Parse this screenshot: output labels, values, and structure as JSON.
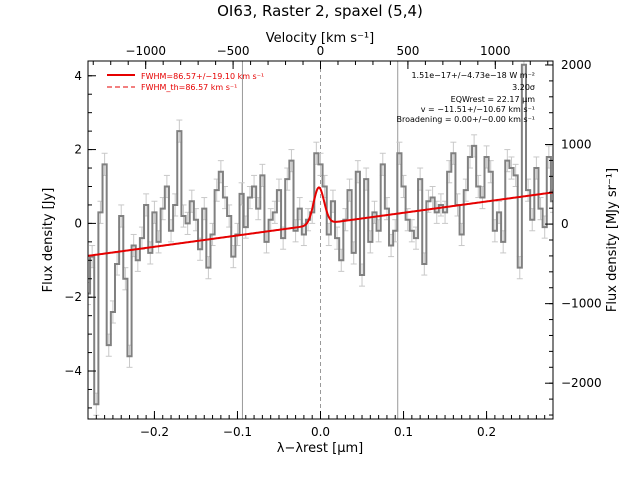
{
  "chart_data": {
    "type": "line",
    "title": "OI63, Raster 2, spaxel (5,4)",
    "xlabel": "λ−λrest [μm]",
    "ylabel": "Flux density [Jy]",
    "top_axis_label": "Velocity [km s⁻¹]",
    "right_axis_label": "Flux density [MJy sr⁻¹]",
    "xlim": [
      -0.28,
      0.28
    ],
    "ylim": [
      -5.3,
      4.4
    ],
    "top_xlim": [
      -1330,
      1330
    ],
    "right_ylim": [
      -2450,
      2050
    ],
    "x_ticks": [
      -0.2,
      -0.1,
      0.0,
      0.1,
      0.2
    ],
    "x_tick_labels": [
      "−0.2",
      "−0.1",
      "0.0",
      "0.1",
      "0.2"
    ],
    "y_ticks": [
      -4,
      -2,
      0,
      2,
      4
    ],
    "y_tick_labels": [
      "−4",
      "−2",
      "0",
      "2",
      "4"
    ],
    "top_ticks": [
      -1000,
      -500,
      0,
      500,
      1000
    ],
    "top_tick_labels": [
      "−1000",
      "−500",
      "0",
      "500",
      "1000"
    ],
    "right_ticks": [
      -2000,
      -1000,
      0,
      1000,
      2000
    ],
    "right_tick_labels": [
      "−2000",
      "−1000",
      "0",
      "1000",
      "2000"
    ],
    "vertical_lines": [
      -0.094,
      0.0,
      0.093
    ],
    "legend": [
      {
        "label": "FWHM=86.57+/−19.10 km s⁻¹",
        "style": "solid",
        "color": "#e60000"
      },
      {
        "label": "FWHM_th=86.57 km s⁻¹",
        "style": "dashed",
        "color": "#e60000"
      }
    ],
    "annotations": [
      "1.51e−17+/−4.73e−18 W m⁻²",
      "3.20σ",
      "EQWrest = 22.17 μm",
      "v = −11.51+/−10.67 km s⁻¹",
      "Broadening = 0.00+/−0.00 km s⁻¹"
    ],
    "series": [
      {
        "name": "",
        "color": "#808080",
        "step": true,
        "x": [
          -0.28,
          -0.275,
          -0.27,
          -0.265,
          -0.26,
          -0.255,
          -0.25,
          -0.245,
          -0.24,
          -0.235,
          -0.23,
          -0.225,
          -0.22,
          -0.215,
          -0.21,
          -0.205,
          -0.2,
          -0.195,
          -0.19,
          -0.185,
          -0.18,
          -0.175,
          -0.17,
          -0.165,
          -0.16,
          -0.155,
          -0.15,
          -0.145,
          -0.14,
          -0.135,
          -0.13,
          -0.125,
          -0.12,
          -0.115,
          -0.11,
          -0.105,
          -0.1,
          -0.095,
          -0.09,
          -0.085,
          -0.08,
          -0.075,
          -0.07,
          -0.065,
          -0.06,
          -0.055,
          -0.05,
          -0.045,
          -0.04,
          -0.035,
          -0.03,
          -0.025,
          -0.02,
          -0.015,
          -0.01,
          -0.005,
          0.0,
          0.005,
          0.01,
          0.015,
          0.02,
          0.025,
          0.03,
          0.035,
          0.04,
          0.045,
          0.05,
          0.055,
          0.06,
          0.065,
          0.07,
          0.075,
          0.08,
          0.085,
          0.09,
          0.095,
          0.1,
          0.105,
          0.11,
          0.115,
          0.12,
          0.125,
          0.13,
          0.135,
          0.14,
          0.145,
          0.15,
          0.155,
          0.16,
          0.165,
          0.17,
          0.175,
          0.18,
          0.185,
          0.19,
          0.195,
          0.2,
          0.205,
          0.21,
          0.215,
          0.22,
          0.225,
          0.23,
          0.235,
          0.24,
          0.245,
          0.25,
          0.255,
          0.26,
          0.265,
          0.27,
          0.275,
          0.28
        ],
        "y": [
          -1.9,
          -0.9,
          -4.9,
          0.3,
          1.6,
          -3.3,
          -2.4,
          -1.1,
          0.2,
          -1.5,
          -3.6,
          -0.6,
          -1.0,
          -0.4,
          0.5,
          -0.8,
          0.3,
          -0.5,
          0.4,
          1.0,
          -0.2,
          0.5,
          2.5,
          0.2,
          0.0,
          0.6,
          0.1,
          -0.7,
          0.4,
          -1.2,
          -0.3,
          0.9,
          1.4,
          0.7,
          0.2,
          -0.9,
          -0.3,
          0.8,
          -0.1,
          0.7,
          1.0,
          0.4,
          1.3,
          -0.5,
          0.1,
          0.3,
          0.9,
          -0.4,
          1.2,
          1.7,
          -0.2,
          0.4,
          -0.3,
          0.1,
          0.3,
          1.9,
          1.6,
          1.0,
          -0.3,
          0.6,
          -0.4,
          -1.0,
          0.1,
          0.9,
          -0.8,
          1.4,
          -1.4,
          1.2,
          -0.5,
          0.3,
          -0.2,
          1.6,
          0.4,
          -0.6,
          -0.2,
          1.9,
          1.0,
          0.1,
          -0.2,
          -0.4,
          1.2,
          -1.1,
          0.6,
          0.7,
          0.3,
          0.5,
          0.3,
          1.4,
          1.9,
          0.5,
          -0.3,
          0.9,
          1.8,
          2.1,
          1.0,
          0.7,
          1.8,
          1.4,
          -0.2,
          0.3,
          -0.5,
          1.7,
          1.5,
          1.3,
          -1.2,
          4.3,
          0.9,
          0.1,
          1.5,
          0.4,
          -0.1,
          1.8,
          0.6
        ]
      },
      {
        "name": "",
        "color": "#e60000",
        "type": "fit",
        "slope": 3.07,
        "intercept": -0.02,
        "gauss_center": -0.002,
        "gauss_amplitude": 1.0,
        "gauss_sigma": 0.0063
      }
    ]
  }
}
